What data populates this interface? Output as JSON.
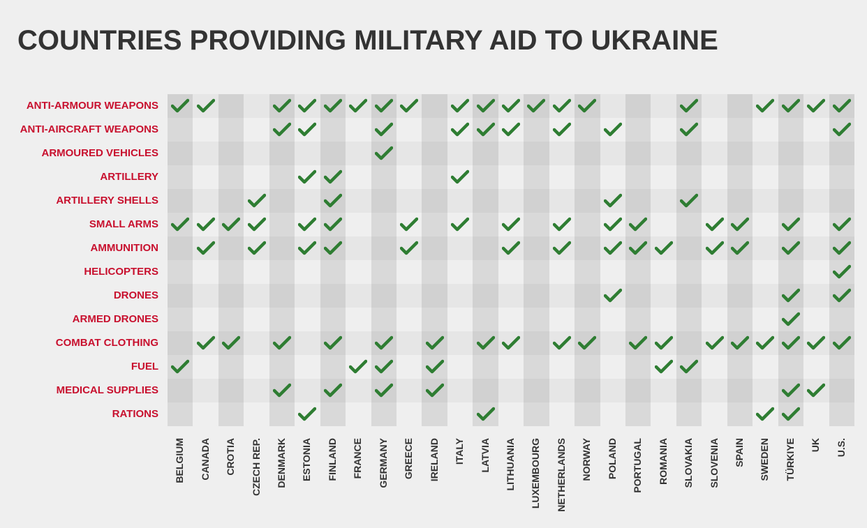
{
  "chart_data": {
    "type": "table",
    "title": "COUNTRIES PROVIDING MILITARY AID TO UKRAINE",
    "columns": [
      "BELGIUM",
      "CANADA",
      "CROTIA",
      "CZECH REP.",
      "DENMARK",
      "ESTONIA",
      "FINLAND",
      "FRANCE",
      "GERMANY",
      "GREECE",
      "IRELAND",
      "ITALY",
      "LATVIA",
      "LITHUANIA",
      "LUXEMBOURG",
      "NETHERLANDS",
      "NORWAY",
      "POLAND",
      "PORTUGAL",
      "ROMANIA",
      "SLOVAKIA",
      "SLOVENIA",
      "SPAIN",
      "SWEDEN",
      "TÜRKIYE",
      "UK",
      "U.S."
    ],
    "rows": [
      {
        "label": "ANTI-ARMOUR WEAPONS",
        "provided": [
          "BELGIUM",
          "CANADA",
          "DENMARK",
          "ESTONIA",
          "FINLAND",
          "FRANCE",
          "GERMANY",
          "GREECE",
          "ITALY",
          "LATVIA",
          "LITHUANIA",
          "LUXEMBOURG",
          "NETHERLANDS",
          "NORWAY",
          "SLOVAKIA",
          "SWEDEN",
          "TÜRKIYE",
          "UK",
          "U.S."
        ]
      },
      {
        "label": "ANTI-AIRCRAFT WEAPONS",
        "provided": [
          "DENMARK",
          "ESTONIA",
          "GERMANY",
          "ITALY",
          "LATVIA",
          "LITHUANIA",
          "NETHERLANDS",
          "POLAND",
          "SLOVAKIA",
          "U.S."
        ]
      },
      {
        "label": "ARMOURED VEHICLES",
        "provided": [
          "GERMANY"
        ]
      },
      {
        "label": "ARTILLERY",
        "provided": [
          "ESTONIA",
          "FINLAND",
          "ITALY"
        ]
      },
      {
        "label": "ARTILLERY SHELLS",
        "provided": [
          "CZECH REP.",
          "FINLAND",
          "POLAND",
          "SLOVAKIA"
        ]
      },
      {
        "label": "SMALL ARMS",
        "provided": [
          "BELGIUM",
          "CANADA",
          "CROTIA",
          "CZECH REP.",
          "ESTONIA",
          "FINLAND",
          "GREECE",
          "ITALY",
          "LITHUANIA",
          "NETHERLANDS",
          "POLAND",
          "PORTUGAL",
          "SLOVENIA",
          "SPAIN",
          "TÜRKIYE",
          "U.S."
        ]
      },
      {
        "label": "AMMUNITION",
        "provided": [
          "CANADA",
          "CZECH REP.",
          "ESTONIA",
          "FINLAND",
          "GREECE",
          "LITHUANIA",
          "NETHERLANDS",
          "POLAND",
          "PORTUGAL",
          "ROMANIA",
          "SLOVENIA",
          "SPAIN",
          "TÜRKIYE",
          "U.S."
        ]
      },
      {
        "label": "HELICOPTERS",
        "provided": [
          "U.S."
        ]
      },
      {
        "label": "DRONES",
        "provided": [
          "POLAND",
          "TÜRKIYE",
          "U.S."
        ]
      },
      {
        "label": "ARMED DRONES",
        "provided": [
          "TÜRKIYE"
        ]
      },
      {
        "label": "COMBAT CLOTHING",
        "provided": [
          "CANADA",
          "CROTIA",
          "DENMARK",
          "FINLAND",
          "GERMANY",
          "IRELAND",
          "LATVIA",
          "LITHUANIA",
          "NETHERLANDS",
          "NORWAY",
          "PORTUGAL",
          "ROMANIA",
          "SLOVENIA",
          "SPAIN",
          "SWEDEN",
          "TÜRKIYE",
          "UK",
          "U.S."
        ]
      },
      {
        "label": "FUEL",
        "provided": [
          "BELGIUM",
          "FRANCE",
          "GERMANY",
          "IRELAND",
          "ROMANIA",
          "SLOVAKIA"
        ]
      },
      {
        "label": "MEDICAL SUPPLIES",
        "provided": [
          "DENMARK",
          "FINLAND",
          "GERMANY",
          "IRELAND",
          "TÜRKIYE",
          "UK"
        ]
      },
      {
        "label": "RATIONS",
        "provided": [
          "ESTONIA",
          "LATVIA",
          "SWEDEN",
          "TÜRKIYE"
        ]
      }
    ],
    "colors": {
      "title": "#333333",
      "row_label": "#c8102e",
      "check": "#2e7d32",
      "band_dark": "#d4d4d4",
      "band_light": "#e6e6e6",
      "background": "#efefef"
    },
    "icon": "check-icon"
  }
}
